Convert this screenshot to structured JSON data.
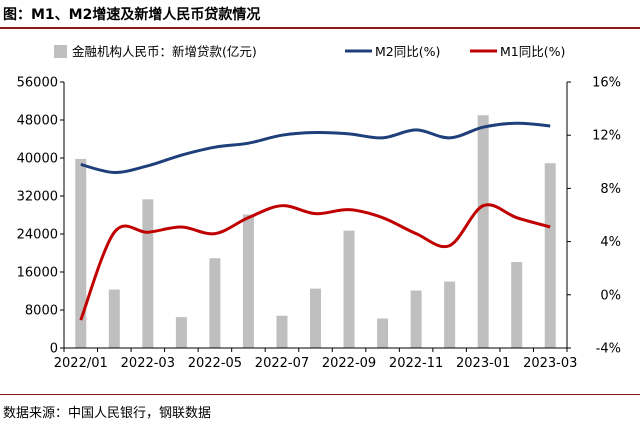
{
  "title": "图：M1、M2增速及新增人民币贷款情况",
  "source": "数据来源：中国人民银行，钢联数据",
  "colors": {
    "bar": "#bfbfbf",
    "m2": "#1f3f7a",
    "m1": "#c00000",
    "rule": "#8b1a1a"
  },
  "chart_data": {
    "type": "bar+line",
    "categories": [
      "2022/01",
      "2022/02",
      "2022/03",
      "2022/04",
      "2022/05",
      "2022/06",
      "2022/07",
      "2022/08",
      "2022/09",
      "2022/10",
      "2022/11",
      "2022/12",
      "2023/01",
      "2023/02",
      "2023/03"
    ],
    "x_tick_labels": [
      "2022/01",
      "2022-03",
      "2022-05",
      "2022-07",
      "2022-09",
      "2022-11",
      "2023-01",
      "2023-03"
    ],
    "x_tick_indices": [
      0,
      2,
      4,
      6,
      8,
      10,
      12,
      14
    ],
    "left_axis": {
      "ylim": [
        0,
        56000
      ],
      "ticks": [
        "0",
        "8000",
        "16000",
        "24000",
        "32000",
        "40000",
        "48000",
        "56000"
      ]
    },
    "right_axis": {
      "ylim": [
        -4,
        16
      ],
      "ticks": [
        "-4%",
        "0%",
        "4%",
        "8%",
        "12%",
        "16%"
      ]
    },
    "series": [
      {
        "name": "金融机构人民币：新增贷款(亿元)",
        "kind": "bar",
        "axis": "left",
        "values": [
          39800,
          12300,
          31300,
          6500,
          18900,
          28100,
          6800,
          12500,
          24700,
          6200,
          12100,
          14000,
          49000,
          18100,
          38900
        ]
      },
      {
        "name": "M2同比(%)",
        "kind": "line",
        "axis": "right",
        "values": [
          9.8,
          9.2,
          9.7,
          10.5,
          11.1,
          11.4,
          12.0,
          12.2,
          12.1,
          11.8,
          12.4,
          11.8,
          12.6,
          12.9,
          12.7
        ]
      },
      {
        "name": "M1同比(%)",
        "kind": "line",
        "axis": "right",
        "values": [
          -1.9,
          4.7,
          4.7,
          5.1,
          4.6,
          5.8,
          6.7,
          6.1,
          6.4,
          5.8,
          4.6,
          3.7,
          6.7,
          5.8,
          5.1
        ]
      }
    ],
    "legend_position": "top",
    "grid": false
  }
}
